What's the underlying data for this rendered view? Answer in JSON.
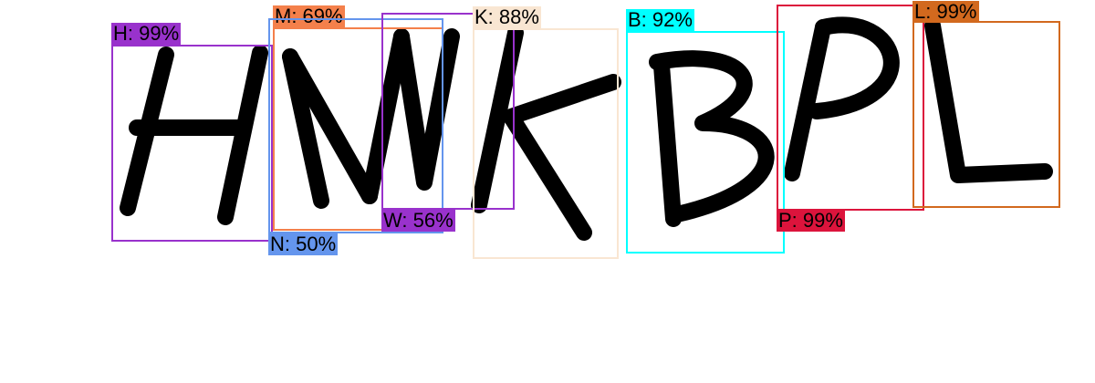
{
  "detections": [
    {
      "id": "h",
      "label": "H: 99%",
      "color": "#9932cc"
    },
    {
      "id": "m",
      "label": "M: 69%",
      "color": "#f4804b"
    },
    {
      "id": "n",
      "label": "N: 50%",
      "color": "#6495ed"
    },
    {
      "id": "w",
      "label": "W: 56%",
      "color": "#9932cc"
    },
    {
      "id": "k",
      "label": "K: 88%",
      "color": "#f9e6d2"
    },
    {
      "id": "b",
      "label": "B: 92%",
      "color": "#00ffff"
    },
    {
      "id": "p",
      "label": "P: 99%",
      "color": "#dc143c"
    },
    {
      "id": "l",
      "label": "L: 99%",
      "color": "#d2691e"
    }
  ]
}
